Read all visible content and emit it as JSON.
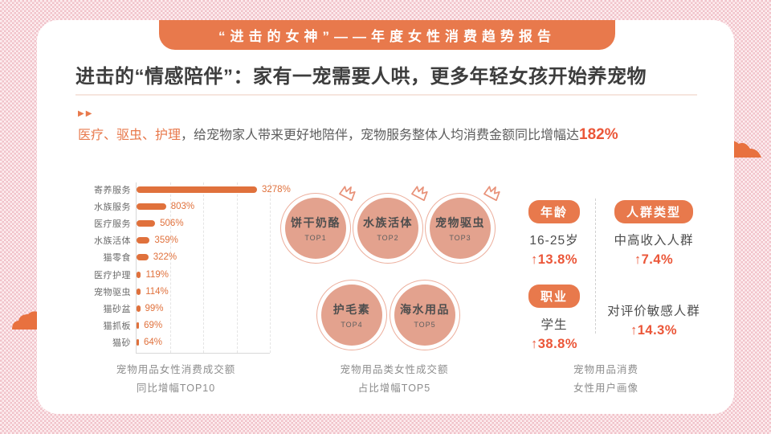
{
  "banner": {
    "title": "“进击的女神”——年度女性消费趋势报告"
  },
  "heading": "进击的“情感陪伴”：家有一宠需要人哄，更多年轻女孩开始养宠物",
  "intro": {
    "marker": "▶▶",
    "highlight": "医疗、驱虫、护理",
    "text": "，给宠物家人带来更好地陪伴，宠物服务整体人均消费金额同比增幅达",
    "stat": "182%"
  },
  "chart_data": {
    "type": "bar",
    "orientation": "horizontal",
    "title": "宠物用品女性消费成交额同比增幅TOP10",
    "categories": [
      "寄养服务",
      "水族服务",
      "医疗服务",
      "水族活体",
      "猫零食",
      "医疗护理",
      "宠物驱虫",
      "猫砂盆",
      "猫抓板",
      "猫砂"
    ],
    "values": [
      3278,
      803,
      506,
      359,
      322,
      119,
      114,
      99,
      69,
      64
    ],
    "unit": "%",
    "xlim": [
      0,
      3278
    ],
    "grid": true,
    "legend": "none",
    "caption": [
      "宠物用品女性消费成交额",
      "同比增幅TOP10"
    ]
  },
  "top5": {
    "items": [
      {
        "name": "饼干奶酪",
        "rank": "TOP1",
        "crown": true
      },
      {
        "name": "水族活体",
        "rank": "TOP2",
        "crown": true
      },
      {
        "name": "宠物驱虫",
        "rank": "TOP3",
        "crown": true
      },
      {
        "name": "护毛素",
        "rank": "TOP4",
        "crown": false
      },
      {
        "name": "海水用品",
        "rank": "TOP5",
        "crown": false
      }
    ],
    "caption": [
      "宠物用品类女性成交额",
      "占比增幅TOP5"
    ]
  },
  "profile": {
    "cells": [
      {
        "badge": "年龄",
        "label": "16-25岁",
        "value": "↑13.8%"
      },
      {
        "badge": "人群类型",
        "label": "中高收入人群",
        "value": "↑7.4%"
      },
      {
        "badge": "职业",
        "label": "学生",
        "value": "↑38.8%"
      },
      {
        "badge": null,
        "label": "对评价敏感人群",
        "value": "↑14.3%"
      }
    ],
    "caption": [
      "宠物用品消费",
      "女性用户画像"
    ]
  },
  "colors": {
    "accent": "#E8794C",
    "bar": "#E0713C",
    "stat": "#EB5638",
    "circle_fill": "#E3A28E",
    "circle_ring": "#ECAE9C",
    "background_pink": "#F1C3CA",
    "cloud": "#E8713F"
  }
}
